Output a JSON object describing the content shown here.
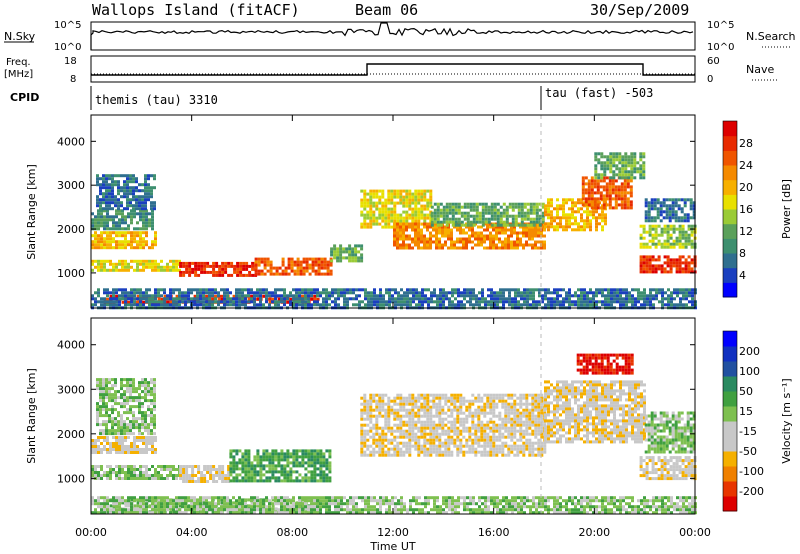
{
  "header": {
    "station": "Wallops Island (fitACF)",
    "beam": "Beam 06",
    "date": "30/Sep/2009"
  },
  "strips": {
    "nsky_label": "N.Sky",
    "nsky_ticks": [
      "10^5",
      "10^0"
    ],
    "nsearch_label": "N.Search",
    "nsearch_ticks": [
      "10^5",
      "10^0"
    ],
    "freq_label_1": "Freq.",
    "freq_label_2": "[MHz]",
    "freq_ticks": [
      "18",
      "8"
    ],
    "nave_label": "Nave",
    "nave_ticks": [
      "60",
      "0"
    ],
    "cpid_label": "CPID",
    "cpid_1": "themis (tau) 3310",
    "cpid_2": "tau (fast) -503"
  },
  "chart_data": [
    {
      "type": "heatmap",
      "panel": "power",
      "ylabel": "Slant Range [km]",
      "xlabel": "Time UT",
      "yticks": [
        1000,
        2000,
        3000,
        4000
      ],
      "xticks": [
        "00:00",
        "04:00",
        "08:00",
        "12:00",
        "16:00",
        "20:00",
        "00:00"
      ],
      "ylim": [
        200,
        4600
      ],
      "xlim_hours": [
        0,
        24
      ],
      "mode_change_hour": 18,
      "colorbar": {
        "label": "Power [dB]",
        "ticks": [
          "28",
          "24",
          "20",
          "16",
          "12",
          "8",
          "4"
        ],
        "colors": [
          "#0000ff",
          "#1a3fbf",
          "#2f6f8f",
          "#3d8f6f",
          "#5aa05a",
          "#9acb36",
          "#e8e000",
          "#f7b000",
          "#f58a00",
          "#f05500",
          "#e82a00",
          "#dd0000"
        ]
      },
      "bands": [
        {
          "t0": 0,
          "t1": 2.6,
          "r0": 1550,
          "r1": 1950,
          "level": 7
        },
        {
          "t0": 0,
          "t1": 2.4,
          "r0": 2000,
          "r1": 2450,
          "level": 3
        },
        {
          "t0": 0.2,
          "t1": 2.5,
          "r0": 2450,
          "r1": 3250,
          "level": 2
        },
        {
          "t0": 0,
          "t1": 3.5,
          "r0": 1050,
          "r1": 1300,
          "level": 6
        },
        {
          "t0": 3.5,
          "t1": 6.5,
          "r0": 950,
          "r1": 1250,
          "level": 10
        },
        {
          "t0": 6.5,
          "t1": 9.5,
          "r0": 1000,
          "r1": 1350,
          "level": 9
        },
        {
          "t0": 9.5,
          "t1": 10.8,
          "r0": 1300,
          "r1": 1650,
          "level": 4
        },
        {
          "t0": 0.5,
          "t1": 9.0,
          "r0": 300,
          "r1": 500,
          "level": 10
        },
        {
          "t0": 0,
          "t1": 24,
          "r0": 200,
          "r1": 650,
          "level": 2
        },
        {
          "t0": 10.7,
          "t1": 13.5,
          "r0": 2050,
          "r1": 2900,
          "level": 6
        },
        {
          "t0": 12.0,
          "t1": 18.0,
          "r0": 1600,
          "r1": 2150,
          "level": 8
        },
        {
          "t0": 13.5,
          "t1": 18.0,
          "r0": 2100,
          "r1": 2600,
          "level": 4
        },
        {
          "t0": 18.0,
          "t1": 20.5,
          "r0": 2000,
          "r1": 2700,
          "level": 7
        },
        {
          "t0": 19.5,
          "t1": 21.5,
          "r0": 2500,
          "r1": 3200,
          "level": 9
        },
        {
          "t0": 20.0,
          "t1": 22.0,
          "r0": 3200,
          "r1": 3750,
          "level": 4
        },
        {
          "t0": 21.8,
          "t1": 24.0,
          "r0": 1050,
          "r1": 1400,
          "level": 10
        },
        {
          "t0": 21.8,
          "t1": 24.0,
          "r0": 1600,
          "r1": 2100,
          "level": 5
        },
        {
          "t0": 22.0,
          "t1": 24.0,
          "r0": 2200,
          "r1": 2700,
          "level": 2
        }
      ]
    },
    {
      "type": "heatmap",
      "panel": "velocity",
      "ylabel": "Slant Range [km]",
      "xlabel": "Time UT",
      "yticks": [
        1000,
        2000,
        3000,
        4000
      ],
      "xticks": [
        "00:00",
        "04:00",
        "08:00",
        "12:00",
        "16:00",
        "20:00",
        "00:00"
      ],
      "ylim": [
        200,
        4600
      ],
      "xlim_hours": [
        0,
        24
      ],
      "mode_change_hour": 18,
      "colorbar": {
        "label": "Velocity [m s⁻¹]",
        "ticks": [
          "200",
          "100",
          "50",
          "15",
          "-15",
          "-50",
          "-100",
          "-200"
        ],
        "colors": [
          "#dd0000",
          "#e83500",
          "#f08000",
          "#f5b000",
          "#c8c8c8",
          "#c8c8c8",
          "#7ec050",
          "#40a040",
          "#2a8a60",
          "#2050a0",
          "#1030c0",
          "#0000ff"
        ]
      },
      "bands": [
        {
          "t0": 0,
          "t1": 2.6,
          "r0": 1550,
          "r1": 1950,
          "level": 4
        },
        {
          "t0": 0.2,
          "t1": 2.5,
          "r0": 2000,
          "r1": 3250,
          "level": 6
        },
        {
          "t0": 0,
          "t1": 3.5,
          "r0": 1000,
          "r1": 1300,
          "level": 6
        },
        {
          "t0": 3.5,
          "t1": 5.5,
          "r0": 950,
          "r1": 1300,
          "level": 4
        },
        {
          "t0": 5.5,
          "t1": 9.5,
          "r0": 950,
          "r1": 1650,
          "level": 7
        },
        {
          "t0": 0.5,
          "t1": 9.0,
          "r0": 250,
          "r1": 550,
          "level": 6
        },
        {
          "t0": 10.7,
          "t1": 18.0,
          "r0": 1500,
          "r1": 2900,
          "level": 4
        },
        {
          "t0": 18.0,
          "t1": 22.0,
          "r0": 1800,
          "r1": 3200,
          "level": 4
        },
        {
          "t0": 19.3,
          "t1": 21.5,
          "r0": 3350,
          "r1": 3800,
          "level": 0
        },
        {
          "t0": 21.8,
          "t1": 24.0,
          "r0": 1000,
          "r1": 1500,
          "level": 4
        },
        {
          "t0": 22.0,
          "t1": 24.0,
          "r0": 1600,
          "r1": 2500,
          "level": 6
        },
        {
          "t0": 0,
          "t1": 24,
          "r0": 200,
          "r1": 600,
          "level": 6
        }
      ]
    }
  ]
}
